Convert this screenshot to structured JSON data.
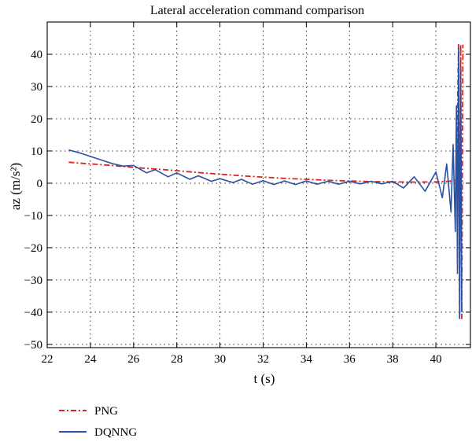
{
  "chart_data": {
    "type": "line",
    "title": "Lateral acceleration command comparison",
    "xlabel": "t (s)",
    "ylabel": "az (m/s²)",
    "xlim": [
      22,
      41.6
    ],
    "ylim": [
      -51,
      50
    ],
    "xticks": [
      22,
      24,
      26,
      28,
      30,
      32,
      34,
      36,
      38,
      40
    ],
    "yticks": [
      40,
      30,
      20,
      10,
      0,
      -10,
      -20,
      -30,
      -40,
      -50
    ],
    "xtick_labels": [
      "22",
      "24",
      "26",
      "28",
      "30",
      "32",
      "34",
      "36",
      "38",
      "40"
    ],
    "ytick_labels": [
      "40",
      "30",
      "20",
      "10",
      "0",
      "−10",
      "−20",
      "−30",
      "−40",
      "−50"
    ],
    "grid": true,
    "legend_position": "below-left",
    "series": [
      {
        "name": "PNG",
        "color": "#e0211f",
        "style": "dashdot",
        "x": [
          23.0,
          24.0,
          25.0,
          26.0,
          27.0,
          28.0,
          29.0,
          30.0,
          31.0,
          32.0,
          33.0,
          34.0,
          35.0,
          36.0,
          37.0,
          38.0,
          39.0,
          40.0,
          40.6,
          40.95,
          41.05,
          41.1,
          41.15,
          41.2,
          41.25
        ],
        "y": [
          6.5,
          6.0,
          5.5,
          4.9,
          4.4,
          3.9,
          3.3,
          2.8,
          2.3,
          1.9,
          1.5,
          1.2,
          0.9,
          0.7,
          0.5,
          0.4,
          0.35,
          0.4,
          0.6,
          1.0,
          43,
          -42,
          43,
          -42,
          43
        ]
      },
      {
        "name": "DQNNG",
        "color": "#2b4fa3",
        "style": "solid",
        "x": [
          23.0,
          23.5,
          24.0,
          24.5,
          25.0,
          25.5,
          26.0,
          26.6,
          27.0,
          27.6,
          28.0,
          28.6,
          29.0,
          29.6,
          30.0,
          30.6,
          31.0,
          31.5,
          32.0,
          32.5,
          33.0,
          33.5,
          34.0,
          34.5,
          35.0,
          35.5,
          36.0,
          36.5,
          37.0,
          37.5,
          38.0,
          38.5,
          39.0,
          39.5,
          40.0,
          40.3,
          40.5,
          40.7,
          40.8,
          40.9,
          40.95,
          41.0,
          41.05,
          41.1,
          41.15,
          41.2
        ],
        "y": [
          10.3,
          9.4,
          8.3,
          7.2,
          6.1,
          5.3,
          5.5,
          3.2,
          4.2,
          2.0,
          3.2,
          1.2,
          2.3,
          0.6,
          1.4,
          0.2,
          1.2,
          -0.3,
          0.8,
          -0.4,
          0.7,
          -0.4,
          0.7,
          -0.3,
          0.6,
          -0.3,
          0.6,
          -0.2,
          0.6,
          -0.2,
          0.6,
          -1.5,
          2.0,
          -2.5,
          3.5,
          -4.5,
          6.0,
          -9.0,
          12.0,
          -15.0,
          24.0,
          -28.0,
          42.0,
          -42.0,
          36.0,
          -40.0
        ]
      }
    ]
  }
}
